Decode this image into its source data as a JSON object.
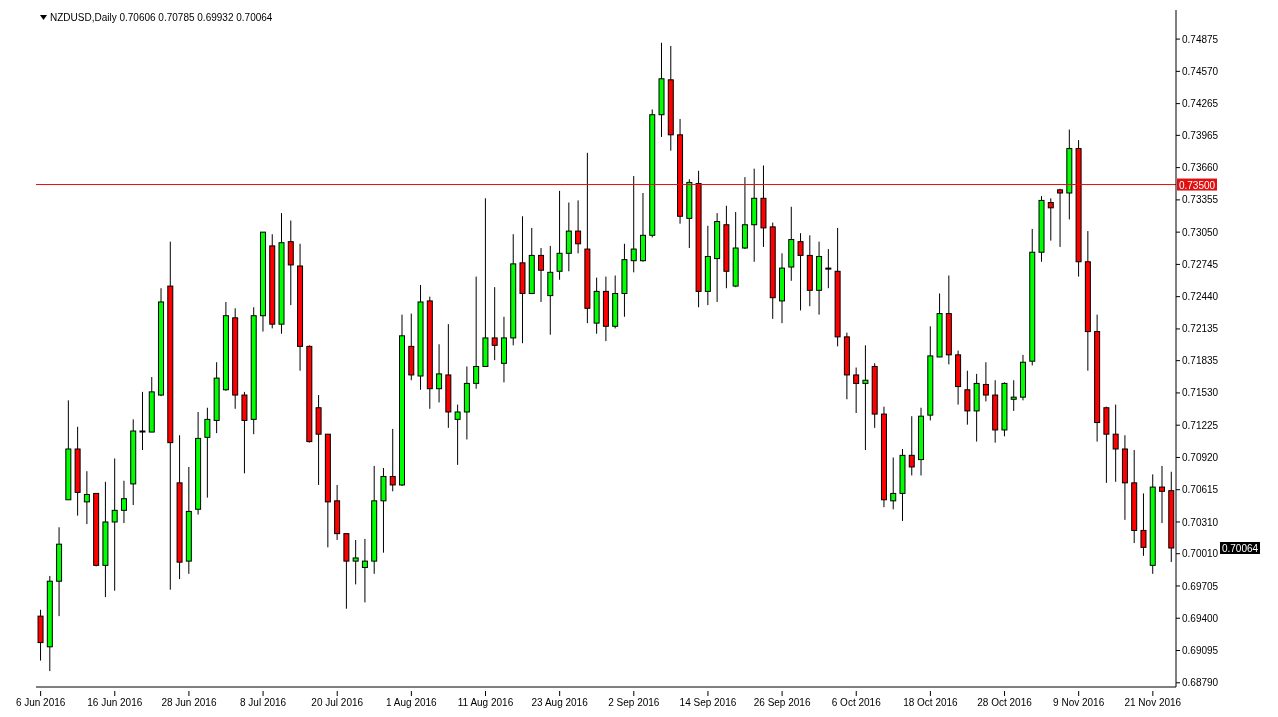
{
  "chart_data": {
    "type": "candlestick",
    "title": "NZDUSD,Daily  0.70606 0.70785 0.69932 0.70064",
    "categories": [
      "6 Jun 2016",
      null,
      null,
      null,
      null,
      null,
      null,
      null,
      "16 Jun 2016",
      null,
      null,
      null,
      null,
      null,
      null,
      null,
      "28 Jun 2016",
      null,
      null,
      null,
      null,
      null,
      null,
      null,
      "8 Jul 2016",
      null,
      null,
      null,
      null,
      null,
      null,
      null,
      "20 Jul 2016",
      null,
      null,
      null,
      null,
      null,
      null,
      null,
      "1 Aug 2016",
      null,
      null,
      null,
      null,
      null,
      null,
      null,
      "11 Aug 2016",
      null,
      null,
      null,
      null,
      null,
      null,
      null,
      "23 Aug 2016",
      null,
      null,
      null,
      null,
      null,
      null,
      null,
      "2 Sep 2016",
      null,
      null,
      null,
      null,
      null,
      null,
      null,
      "14 Sep 2016",
      null,
      null,
      null,
      null,
      null,
      null,
      null,
      "26 Sep 2016",
      null,
      null,
      null,
      null,
      null,
      null,
      null,
      "6 Oct 2016",
      null,
      null,
      null,
      null,
      null,
      null,
      null,
      "18 Oct 2016",
      null,
      null,
      null,
      null,
      null,
      null,
      null,
      "28 Oct 2016",
      null,
      null,
      null,
      null,
      null,
      null,
      null,
      "9 Nov 2016",
      null,
      null,
      null,
      null,
      null,
      null,
      null,
      "21 Nov 2016",
      null,
      null
    ],
    "ohlc": [
      [
        0.6942,
        0.6948,
        0.69,
        0.6917
      ],
      [
        0.6913,
        0.698,
        0.689,
        0.6975
      ],
      [
        0.6975,
        0.7026,
        0.6942,
        0.701
      ],
      [
        0.7052,
        0.7146,
        0.7052,
        0.71
      ],
      [
        0.71,
        0.7121,
        0.7037,
        0.7059
      ],
      [
        0.705,
        0.7079,
        0.7029,
        0.7057
      ],
      [
        0.7058,
        0.7058,
        0.6989,
        0.699
      ],
      [
        0.699,
        0.7069,
        0.696,
        0.7031
      ],
      [
        0.7031,
        0.7091,
        0.6966,
        0.7042
      ],
      [
        0.7042,
        0.707,
        0.703,
        0.7053
      ],
      [
        0.7067,
        0.7128,
        0.7047,
        0.7117
      ],
      [
        0.7117,
        0.7154,
        0.7099,
        0.7117
      ],
      [
        0.7116,
        0.7168,
        0.7116,
        0.7154
      ],
      [
        0.7151,
        0.7252,
        0.715,
        0.7239
      ],
      [
        0.7254,
        0.7296,
        0.6967,
        0.7106
      ],
      [
        0.7068,
        0.7113,
        0.6977,
        0.6993
      ],
      [
        0.6994,
        0.7083,
        0.6982,
        0.7041
      ],
      [
        0.7043,
        0.7135,
        0.7038,
        0.711
      ],
      [
        0.7111,
        0.7139,
        0.7054,
        0.7128
      ],
      [
        0.7127,
        0.7182,
        0.7115,
        0.7167
      ],
      [
        0.7156,
        0.7239,
        0.7155,
        0.7226
      ],
      [
        0.7224,
        0.7233,
        0.7138,
        0.7151
      ],
      [
        0.7151,
        0.7154,
        0.7077,
        0.7127
      ],
      [
        0.7128,
        0.7234,
        0.7114,
        0.7226
      ],
      [
        0.7226,
        0.7305,
        0.7211,
        0.7305
      ],
      [
        0.7292,
        0.7303,
        0.7214,
        0.7218
      ],
      [
        0.7218,
        0.7323,
        0.7209,
        0.7295
      ],
      [
        0.7296,
        0.7316,
        0.7236,
        0.7274
      ],
      [
        0.7273,
        0.7294,
        0.7174,
        0.7197
      ],
      [
        0.7197,
        0.7198,
        0.7106,
        0.7107
      ],
      [
        0.7139,
        0.7151,
        0.7066,
        0.7114
      ],
      [
        0.7114,
        0.7114,
        0.7007,
        0.705
      ],
      [
        0.7051,
        0.7066,
        0.7014,
        0.702
      ],
      [
        0.702,
        0.702,
        0.6949,
        0.6994
      ],
      [
        0.6994,
        0.7014,
        0.6972,
        0.6997
      ],
      [
        0.6988,
        0.7015,
        0.6955,
        0.6994
      ],
      [
        0.6994,
        0.7084,
        0.6982,
        0.7051
      ],
      [
        0.7051,
        0.7082,
        0.7002,
        0.7074
      ],
      [
        0.7074,
        0.7119,
        0.706,
        0.7066
      ],
      [
        0.7066,
        0.7227,
        0.7065,
        0.7207
      ],
      [
        0.7197,
        0.7228,
        0.7165,
        0.717
      ],
      [
        0.7169,
        0.7255,
        0.7156,
        0.7239
      ],
      [
        0.724,
        0.7244,
        0.7138,
        0.7157
      ],
      [
        0.7157,
        0.7199,
        0.7144,
        0.7171
      ],
      [
        0.717,
        0.7218,
        0.712,
        0.7135
      ],
      [
        0.7128,
        0.7142,
        0.7085,
        0.7135
      ],
      [
        0.7135,
        0.7178,
        0.7109,
        0.7162
      ],
      [
        0.7162,
        0.7263,
        0.7157,
        0.7178
      ],
      [
        0.7178,
        0.7337,
        0.7178,
        0.7205
      ],
      [
        0.7205,
        0.7253,
        0.7184,
        0.7198
      ],
      [
        0.7181,
        0.7225,
        0.7163,
        0.7205
      ],
      [
        0.7205,
        0.7303,
        0.7198,
        0.7275
      ],
      [
        0.7276,
        0.732,
        0.72,
        0.7247
      ],
      [
        0.7247,
        0.7309,
        0.7247,
        0.7283
      ],
      [
        0.7283,
        0.729,
        0.7239,
        0.7269
      ],
      [
        0.7245,
        0.7292,
        0.7208,
        0.7267
      ],
      [
        0.7268,
        0.7344,
        0.726,
        0.7285
      ],
      [
        0.7285,
        0.7333,
        0.7268,
        0.7306
      ],
      [
        0.7306,
        0.7335,
        0.7285,
        0.7294
      ],
      [
        0.7289,
        0.738,
        0.7219,
        0.7233
      ],
      [
        0.7219,
        0.7262,
        0.7209,
        0.7249
      ],
      [
        0.7249,
        0.7263,
        0.7202,
        0.7216
      ],
      [
        0.7216,
        0.7264,
        0.7214,
        0.7247
      ],
      [
        0.7247,
        0.7294,
        0.7225,
        0.7279
      ],
      [
        0.7278,
        0.7358,
        0.7267,
        0.7289
      ],
      [
        0.7278,
        0.7342,
        0.7277,
        0.7302
      ],
      [
        0.7302,
        0.7421,
        0.73,
        0.7416
      ],
      [
        0.7416,
        0.7484,
        0.7395,
        0.745
      ],
      [
        0.7449,
        0.7481,
        0.7382,
        0.7397
      ],
      [
        0.7397,
        0.7412,
        0.7313,
        0.732
      ],
      [
        0.7318,
        0.7355,
        0.729,
        0.7352
      ],
      [
        0.7351,
        0.7363,
        0.7234,
        0.7249
      ],
      [
        0.7249,
        0.7311,
        0.7236,
        0.7282
      ],
      [
        0.728,
        0.7323,
        0.7239,
        0.7315
      ],
      [
        0.7312,
        0.733,
        0.7252,
        0.7268
      ],
      [
        0.7254,
        0.7324,
        0.7253,
        0.729
      ],
      [
        0.729,
        0.7357,
        0.7289,
        0.7312
      ],
      [
        0.7312,
        0.7365,
        0.7277,
        0.7337
      ],
      [
        0.7337,
        0.7368,
        0.7291,
        0.7309
      ],
      [
        0.731,
        0.7314,
        0.7223,
        0.7243
      ],
      [
        0.724,
        0.7285,
        0.7219,
        0.7271
      ],
      [
        0.7272,
        0.7329,
        0.7259,
        0.7298
      ],
      [
        0.7296,
        0.7304,
        0.7231,
        0.7283
      ],
      [
        0.7283,
        0.7302,
        0.7235,
        0.725
      ],
      [
        0.725,
        0.7296,
        0.7227,
        0.7282
      ],
      [
        0.7271,
        0.7289,
        0.7252,
        0.7271
      ],
      [
        0.7268,
        0.7309,
        0.7197,
        0.7206
      ],
      [
        0.7206,
        0.721,
        0.7147,
        0.717
      ],
      [
        0.717,
        0.7177,
        0.7134,
        0.7162
      ],
      [
        0.7162,
        0.7198,
        0.7099,
        0.7165
      ],
      [
        0.7178,
        0.7181,
        0.712,
        0.7133
      ],
      [
        0.7133,
        0.714,
        0.7045,
        0.7052
      ],
      [
        0.7051,
        0.7092,
        0.7043,
        0.7058
      ],
      [
        0.7058,
        0.71,
        0.7032,
        0.7094
      ],
      [
        0.7094,
        0.7131,
        0.7075,
        0.7083
      ],
      [
        0.709,
        0.7139,
        0.7075,
        0.7131
      ],
      [
        0.7132,
        0.7216,
        0.7127,
        0.7188
      ],
      [
        0.7187,
        0.7247,
        0.7187,
        0.7228
      ],
      [
        0.7228,
        0.7264,
        0.718,
        0.7189
      ],
      [
        0.7189,
        0.7193,
        0.7142,
        0.7159
      ],
      [
        0.7156,
        0.7174,
        0.7123,
        0.7136
      ],
      [
        0.7136,
        0.7171,
        0.7107,
        0.7162
      ],
      [
        0.7161,
        0.7182,
        0.7145,
        0.7151
      ],
      [
        0.7151,
        0.7165,
        0.7106,
        0.7118
      ],
      [
        0.7118,
        0.7163,
        0.7112,
        0.7162
      ],
      [
        0.7147,
        0.7165,
        0.7136,
        0.7149
      ],
      [
        0.7149,
        0.7189,
        0.7146,
        0.7182
      ],
      [
        0.7183,
        0.7308,
        0.7179,
        0.7286
      ],
      [
        0.7286,
        0.7339,
        0.7277,
        0.7335
      ],
      [
        0.7333,
        0.7337,
        0.7297,
        0.7328
      ],
      [
        0.7345,
        0.7346,
        0.7291,
        0.7342
      ],
      [
        0.7342,
        0.7402,
        0.7317,
        0.7384
      ],
      [
        0.7384,
        0.7392,
        0.7263,
        0.7277
      ],
      [
        0.7277,
        0.7306,
        0.7174,
        0.7211
      ],
      [
        0.7211,
        0.7227,
        0.7107,
        0.7125
      ],
      [
        0.7139,
        0.714,
        0.7068,
        0.7114
      ],
      [
        0.7114,
        0.7142,
        0.7069,
        0.71
      ],
      [
        0.71,
        0.7113,
        0.7033,
        0.7068
      ],
      [
        0.7068,
        0.7099,
        0.7011,
        0.7023
      ],
      [
        0.7023,
        0.7058,
        0.6999,
        0.7007
      ],
      [
        0.699,
        0.7076,
        0.6982,
        0.7064
      ],
      [
        0.7064,
        0.7084,
        0.703,
        0.706
      ],
      [
        0.70606,
        0.70785,
        0.69932,
        0.70064
      ]
    ],
    "colors": [
      "#ff0000",
      "#00ff00",
      "#00ff00",
      "#00ff00",
      "#ff0000",
      "#00ff00",
      "#ff0000",
      "#00ff00",
      "#00ff00",
      "#00ff00",
      "#00ff00",
      "#000000",
      "#00ff00",
      "#00ff00",
      "#ff0000",
      "#ff0000",
      "#00ff00",
      "#00ff00",
      "#00ff00",
      "#00ff00",
      "#00ff00",
      "#ff0000",
      "#ff0000",
      "#00ff00",
      "#00ff00",
      "#ff0000",
      "#00ff00",
      "#ff0000",
      "#ff0000",
      "#ff0000",
      "#ff0000",
      "#ff0000",
      "#ff0000",
      "#ff0000",
      "#00ff00",
      "#00ff00",
      "#00ff00",
      "#00ff00",
      "#ff0000",
      "#00ff00",
      "#ff0000",
      "#00ff00",
      "#ff0000",
      "#00ff00",
      "#ff0000",
      "#00ff00",
      "#00ff00",
      "#00ff00",
      "#00ff00",
      "#ff0000",
      "#00ff00",
      "#00ff00",
      "#ff0000",
      "#00ff00",
      "#ff0000",
      "#00ff00",
      "#00ff00",
      "#00ff00",
      "#ff0000",
      "#ff0000",
      "#00ff00",
      "#ff0000",
      "#00ff00",
      "#00ff00",
      "#00ff00",
      "#00ff00",
      "#00ff00",
      "#00ff00",
      "#ff0000",
      "#ff0000",
      "#00ff00",
      "#ff0000",
      "#00ff00",
      "#00ff00",
      "#ff0000",
      "#00ff00",
      "#00ff00",
      "#00ff00",
      "#ff0000",
      "#ff0000",
      "#00ff00",
      "#00ff00",
      "#ff0000",
      "#ff0000",
      "#00ff00",
      "#000000",
      "#ff0000",
      "#ff0000",
      "#ff0000",
      "#00ff00",
      "#ff0000",
      "#ff0000",
      "#00ff00",
      "#00ff00",
      "#ff0000",
      "#00ff00",
      "#00ff00",
      "#00ff00",
      "#ff0000",
      "#ff0000",
      "#ff0000",
      "#00ff00",
      "#ff0000",
      "#ff0000",
      "#00ff00",
      "#00ff00",
      "#00ff00",
      "#00ff00",
      "#00ff00",
      "#ff0000",
      "#ff0000",
      "#00ff00",
      "#ff0000",
      "#ff0000",
      "#ff0000",
      "#ff0000",
      "#ff0000",
      "#ff0000",
      "#ff0000",
      "#ff0000",
      "#00ff00",
      "#ff0000",
      "#ff0000"
    ],
    "ylim": [
      0.6875,
      0.7515
    ],
    "yticks": [
      {
        "value": 0.6879,
        "label": "0.68790"
      },
      {
        "value": 0.69095,
        "label": "0.69095"
      },
      {
        "value": 0.694,
        "label": "0.69400"
      },
      {
        "value": 0.69705,
        "label": "0.69705"
      },
      {
        "value": 0.7001,
        "label": "0.70010"
      },
      {
        "value": 0.7031,
        "label": "0.70310"
      },
      {
        "value": 0.70615,
        "label": "0.70615"
      },
      {
        "value": 0.7092,
        "label": "0.70920"
      },
      {
        "value": 0.71225,
        "label": "0.71225"
      },
      {
        "value": 0.7153,
        "label": "0.71530"
      },
      {
        "value": 0.71835,
        "label": "0.71835"
      },
      {
        "value": 0.72135,
        "label": "0.72135"
      },
      {
        "value": 0.7244,
        "label": "0.72440"
      },
      {
        "value": 0.72745,
        "label": "0.72745"
      },
      {
        "value": 0.7305,
        "label": "0.73050"
      },
      {
        "value": 0.73355,
        "label": "0.73355"
      },
      {
        "value": 0.7366,
        "label": "0.73660"
      },
      {
        "value": 0.73965,
        "label": "0.73965"
      },
      {
        "value": 0.74265,
        "label": "0.74265"
      },
      {
        "value": 0.7457,
        "label": "0.74570"
      },
      {
        "value": 0.74875,
        "label": "0.74875"
      }
    ],
    "ref_lines": [
      {
        "axis": "y",
        "value": 0.735,
        "label": "0.73500",
        "color": "#e01010"
      }
    ],
    "annotations": [
      "0.70064"
    ]
  }
}
